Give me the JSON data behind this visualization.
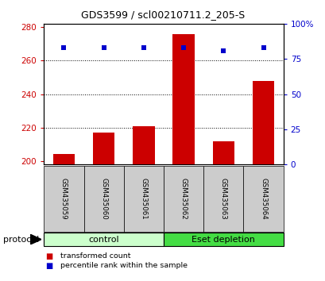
{
  "title": "GDS3599 / scl00210711.2_205-S",
  "samples": [
    "GSM435059",
    "GSM435060",
    "GSM435061",
    "GSM435062",
    "GSM435063",
    "GSM435064"
  ],
  "transformed_counts": [
    204,
    217,
    221,
    276,
    212,
    248
  ],
  "percentile_ranks": [
    83,
    83,
    83,
    83,
    81,
    83
  ],
  "bar_color": "#cc0000",
  "dot_color": "#0000cc",
  "ylim_left": [
    198,
    282
  ],
  "ylim_right": [
    0,
    100
  ],
  "yticks_left": [
    200,
    220,
    240,
    260,
    280
  ],
  "yticks_right": [
    0,
    25,
    50,
    75,
    100
  ],
  "ytick_labels_right": [
    "0",
    "25",
    "50",
    "75",
    "100%"
  ],
  "grid_values": [
    220,
    240,
    260
  ],
  "bar_bottom": 198,
  "groups": [
    {
      "label": "control",
      "indices": [
        0,
        1,
        2
      ],
      "color": "#ccffcc"
    },
    {
      "label": "Eset depletion",
      "indices": [
        3,
        4,
        5
      ],
      "color": "#44dd44"
    }
  ],
  "protocol_label": "protocol",
  "legend_items": [
    {
      "label": "transformed count",
      "color": "#cc0000"
    },
    {
      "label": "percentile rank within the sample",
      "color": "#0000cc"
    }
  ],
  "left_tick_color": "#cc0000",
  "right_tick_color": "#0000cc",
  "bar_width": 0.55,
  "sample_bg_color": "#cccccc"
}
